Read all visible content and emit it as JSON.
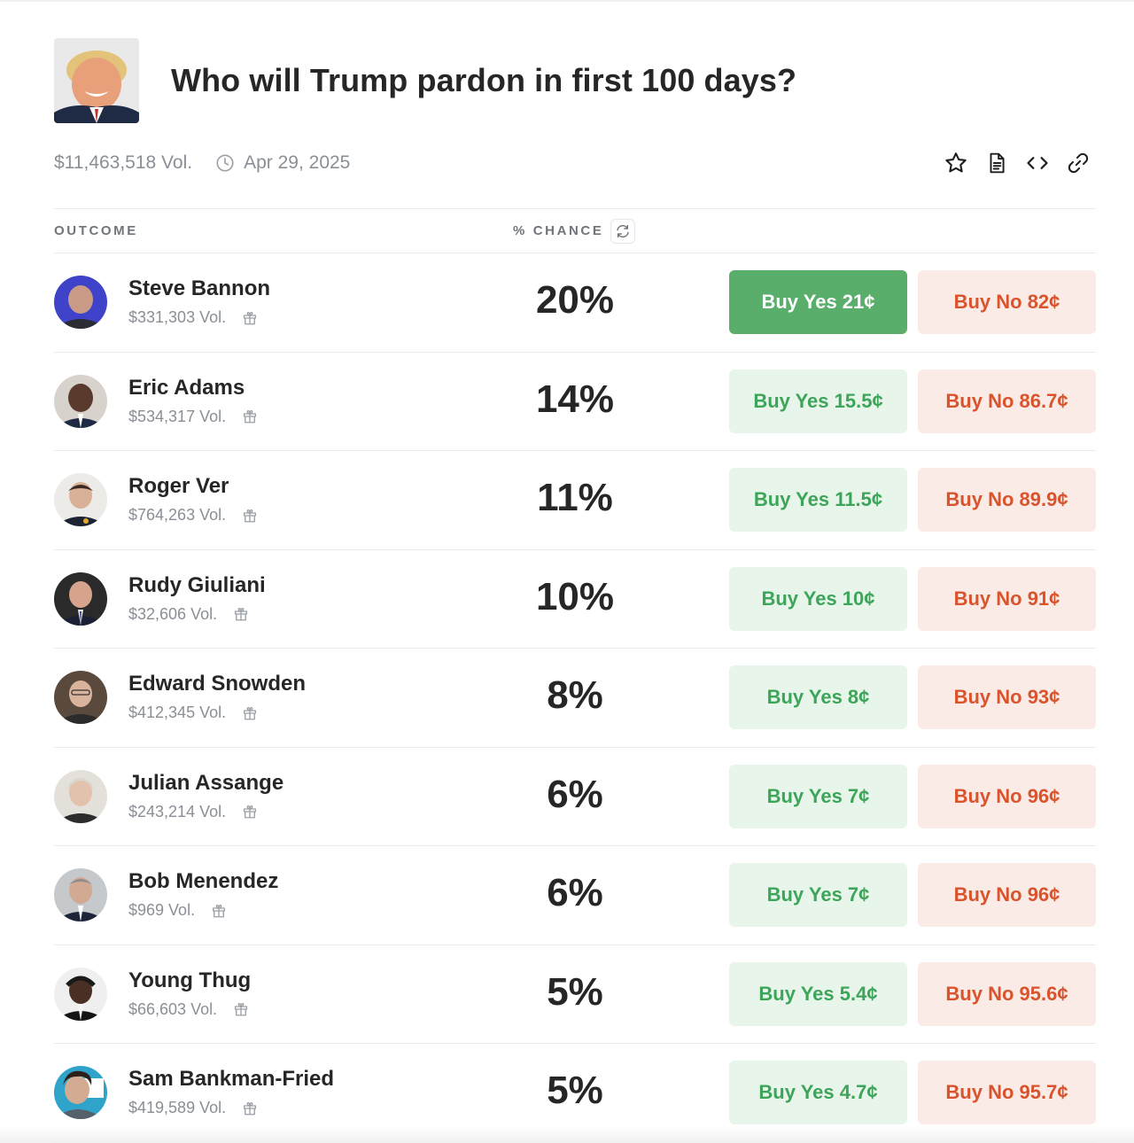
{
  "market": {
    "title": "Who will Trump pardon in first 100 days?",
    "volume": "$11,463,518 Vol.",
    "end_date": "Apr 29, 2025"
  },
  "table": {
    "outcome_header": "OUTCOME",
    "chance_header": "% CHANCE"
  },
  "outcomes": [
    {
      "name": "Steve Bannon",
      "volume": "$331,303 Vol.",
      "chance": "20%",
      "yes": "Buy Yes 21¢",
      "no": "Buy No 82¢"
    },
    {
      "name": "Eric Adams",
      "volume": "$534,317 Vol.",
      "chance": "14%",
      "yes": "Buy Yes 15.5¢",
      "no": "Buy No 86.7¢"
    },
    {
      "name": "Roger Ver",
      "volume": "$764,263 Vol.",
      "chance": "11%",
      "yes": "Buy Yes 11.5¢",
      "no": "Buy No 89.9¢"
    },
    {
      "name": "Rudy Giuliani",
      "volume": "$32,606 Vol.",
      "chance": "10%",
      "yes": "Buy Yes 10¢",
      "no": "Buy No 91¢"
    },
    {
      "name": "Edward Snowden",
      "volume": "$412,345 Vol.",
      "chance": "8%",
      "yes": "Buy Yes 8¢",
      "no": "Buy No 93¢"
    },
    {
      "name": "Julian Assange",
      "volume": "$243,214 Vol.",
      "chance": "6%",
      "yes": "Buy Yes 7¢",
      "no": "Buy No 96¢"
    },
    {
      "name": "Bob Menendez",
      "volume": "$969 Vol.",
      "chance": "6%",
      "yes": "Buy Yes 7¢",
      "no": "Buy No 96¢"
    },
    {
      "name": "Young Thug",
      "volume": "$66,603 Vol.",
      "chance": "5%",
      "yes": "Buy Yes 5.4¢",
      "no": "Buy No 95.6¢"
    },
    {
      "name": "Sam Bankman-Fried",
      "volume": "$419,589 Vol.",
      "chance": "5%",
      "yes": "Buy Yes 4.7¢",
      "no": "Buy No 95.7¢"
    }
  ],
  "icons": {
    "actions": [
      "star-icon",
      "document-icon",
      "code-icon",
      "link-icon"
    ],
    "row": "gift-icon",
    "meta": "clock-icon"
  },
  "colors": {
    "yes_text": "#3da55a",
    "yes_bg": "#e8f5ea",
    "yes_active_bg": "#58ae6a",
    "no_text": "#d9532c",
    "no_bg": "#fbebe7"
  }
}
